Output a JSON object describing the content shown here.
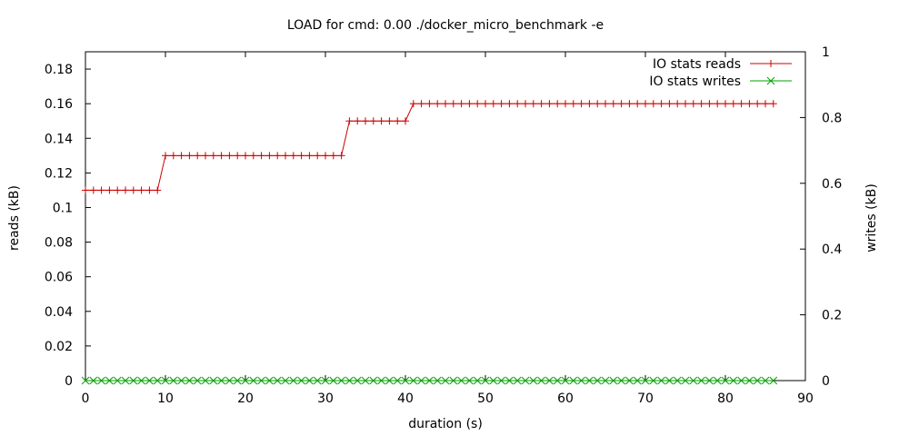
{
  "chart_data": {
    "type": "line",
    "title": "LOAD for cmd: 0.00 ./docker_micro_benchmark -e",
    "xlabel": "duration (s)",
    "ylabel": "reads (kB)",
    "y2label": "writes (kB)",
    "xlim": [
      0,
      90
    ],
    "ylim": [
      0,
      0.19
    ],
    "y2lim": [
      0,
      1
    ],
    "x_ticks": [
      "0",
      "10",
      "20",
      "30",
      "40",
      "50",
      "60",
      "70",
      "80",
      "90"
    ],
    "y_ticks": [
      "0",
      "0.02",
      "0.04",
      "0.06",
      "0.08",
      "0.1",
      "0.12",
      "0.14",
      "0.16",
      "0.18"
    ],
    "y2_ticks": [
      "0",
      "0.2",
      "0.4",
      "0.6",
      "0.8",
      "1"
    ],
    "grid": false,
    "legend_position": "top-right",
    "x_step": 1,
    "series": [
      {
        "name": "IO stats reads",
        "axis": "y",
        "color": "#cc0000",
        "marker": "plus",
        "values": [
          0.11,
          0.11,
          0.11,
          0.11,
          0.11,
          0.11,
          0.11,
          0.11,
          0.11,
          0.11,
          0.13,
          0.13,
          0.13,
          0.13,
          0.13,
          0.13,
          0.13,
          0.13,
          0.13,
          0.13,
          0.13,
          0.13,
          0.13,
          0.13,
          0.13,
          0.13,
          0.13,
          0.13,
          0.13,
          0.13,
          0.13,
          0.13,
          0.13,
          0.15,
          0.15,
          0.15,
          0.15,
          0.15,
          0.15,
          0.15,
          0.15,
          0.16,
          0.16,
          0.16,
          0.16,
          0.16,
          0.16,
          0.16,
          0.16,
          0.16,
          0.16,
          0.16,
          0.16,
          0.16,
          0.16,
          0.16,
          0.16,
          0.16,
          0.16,
          0.16,
          0.16,
          0.16,
          0.16,
          0.16,
          0.16,
          0.16,
          0.16,
          0.16,
          0.16,
          0.16,
          0.16,
          0.16,
          0.16,
          0.16,
          0.16,
          0.16,
          0.16,
          0.16,
          0.16,
          0.16,
          0.16,
          0.16,
          0.16,
          0.16,
          0.16,
          0.16,
          0.16
        ]
      },
      {
        "name": "IO stats writes",
        "axis": "y2",
        "color": "#00a000",
        "marker": "cross",
        "values": [
          0,
          0,
          0,
          0,
          0,
          0,
          0,
          0,
          0,
          0,
          0,
          0,
          0,
          0,
          0,
          0,
          0,
          0,
          0,
          0,
          0,
          0,
          0,
          0,
          0,
          0,
          0,
          0,
          0,
          0,
          0,
          0,
          0,
          0,
          0,
          0,
          0,
          0,
          0,
          0,
          0,
          0,
          0,
          0,
          0,
          0,
          0,
          0,
          0,
          0,
          0,
          0,
          0,
          0,
          0,
          0,
          0,
          0,
          0,
          0,
          0,
          0,
          0,
          0,
          0,
          0,
          0,
          0,
          0,
          0,
          0,
          0,
          0,
          0,
          0,
          0,
          0,
          0,
          0,
          0,
          0,
          0,
          0,
          0,
          0,
          0,
          0
        ]
      }
    ]
  }
}
